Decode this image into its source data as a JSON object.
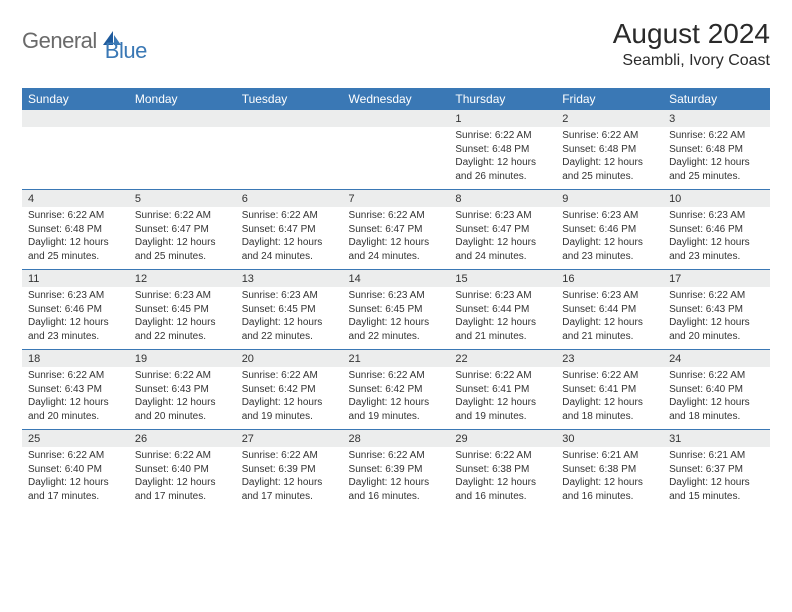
{
  "brand": {
    "part1": "General",
    "part2": "Blue"
  },
  "title": "August 2024",
  "location": "Seambli, Ivory Coast",
  "colors": {
    "header_bg": "#3a78b5",
    "header_text": "#ffffff",
    "daynum_bg": "#eceded",
    "border": "#3a78b5",
    "logo_gray": "#6a6a6a",
    "logo_blue": "#3a78b5"
  },
  "day_names": [
    "Sunday",
    "Monday",
    "Tuesday",
    "Wednesday",
    "Thursday",
    "Friday",
    "Saturday"
  ],
  "weeks": [
    [
      {},
      {},
      {},
      {},
      {
        "n": "1",
        "sr": "Sunrise: 6:22 AM",
        "ss": "Sunset: 6:48 PM",
        "d1": "Daylight: 12 hours",
        "d2": "and 26 minutes."
      },
      {
        "n": "2",
        "sr": "Sunrise: 6:22 AM",
        "ss": "Sunset: 6:48 PM",
        "d1": "Daylight: 12 hours",
        "d2": "and 25 minutes."
      },
      {
        "n": "3",
        "sr": "Sunrise: 6:22 AM",
        "ss": "Sunset: 6:48 PM",
        "d1": "Daylight: 12 hours",
        "d2": "and 25 minutes."
      }
    ],
    [
      {
        "n": "4",
        "sr": "Sunrise: 6:22 AM",
        "ss": "Sunset: 6:48 PM",
        "d1": "Daylight: 12 hours",
        "d2": "and 25 minutes."
      },
      {
        "n": "5",
        "sr": "Sunrise: 6:22 AM",
        "ss": "Sunset: 6:47 PM",
        "d1": "Daylight: 12 hours",
        "d2": "and 25 minutes."
      },
      {
        "n": "6",
        "sr": "Sunrise: 6:22 AM",
        "ss": "Sunset: 6:47 PM",
        "d1": "Daylight: 12 hours",
        "d2": "and 24 minutes."
      },
      {
        "n": "7",
        "sr": "Sunrise: 6:22 AM",
        "ss": "Sunset: 6:47 PM",
        "d1": "Daylight: 12 hours",
        "d2": "and 24 minutes."
      },
      {
        "n": "8",
        "sr": "Sunrise: 6:23 AM",
        "ss": "Sunset: 6:47 PM",
        "d1": "Daylight: 12 hours",
        "d2": "and 24 minutes."
      },
      {
        "n": "9",
        "sr": "Sunrise: 6:23 AM",
        "ss": "Sunset: 6:46 PM",
        "d1": "Daylight: 12 hours",
        "d2": "and 23 minutes."
      },
      {
        "n": "10",
        "sr": "Sunrise: 6:23 AM",
        "ss": "Sunset: 6:46 PM",
        "d1": "Daylight: 12 hours",
        "d2": "and 23 minutes."
      }
    ],
    [
      {
        "n": "11",
        "sr": "Sunrise: 6:23 AM",
        "ss": "Sunset: 6:46 PM",
        "d1": "Daylight: 12 hours",
        "d2": "and 23 minutes."
      },
      {
        "n": "12",
        "sr": "Sunrise: 6:23 AM",
        "ss": "Sunset: 6:45 PM",
        "d1": "Daylight: 12 hours",
        "d2": "and 22 minutes."
      },
      {
        "n": "13",
        "sr": "Sunrise: 6:23 AM",
        "ss": "Sunset: 6:45 PM",
        "d1": "Daylight: 12 hours",
        "d2": "and 22 minutes."
      },
      {
        "n": "14",
        "sr": "Sunrise: 6:23 AM",
        "ss": "Sunset: 6:45 PM",
        "d1": "Daylight: 12 hours",
        "d2": "and 22 minutes."
      },
      {
        "n": "15",
        "sr": "Sunrise: 6:23 AM",
        "ss": "Sunset: 6:44 PM",
        "d1": "Daylight: 12 hours",
        "d2": "and 21 minutes."
      },
      {
        "n": "16",
        "sr": "Sunrise: 6:23 AM",
        "ss": "Sunset: 6:44 PM",
        "d1": "Daylight: 12 hours",
        "d2": "and 21 minutes."
      },
      {
        "n": "17",
        "sr": "Sunrise: 6:22 AM",
        "ss": "Sunset: 6:43 PM",
        "d1": "Daylight: 12 hours",
        "d2": "and 20 minutes."
      }
    ],
    [
      {
        "n": "18",
        "sr": "Sunrise: 6:22 AM",
        "ss": "Sunset: 6:43 PM",
        "d1": "Daylight: 12 hours",
        "d2": "and 20 minutes."
      },
      {
        "n": "19",
        "sr": "Sunrise: 6:22 AM",
        "ss": "Sunset: 6:43 PM",
        "d1": "Daylight: 12 hours",
        "d2": "and 20 minutes."
      },
      {
        "n": "20",
        "sr": "Sunrise: 6:22 AM",
        "ss": "Sunset: 6:42 PM",
        "d1": "Daylight: 12 hours",
        "d2": "and 19 minutes."
      },
      {
        "n": "21",
        "sr": "Sunrise: 6:22 AM",
        "ss": "Sunset: 6:42 PM",
        "d1": "Daylight: 12 hours",
        "d2": "and 19 minutes."
      },
      {
        "n": "22",
        "sr": "Sunrise: 6:22 AM",
        "ss": "Sunset: 6:41 PM",
        "d1": "Daylight: 12 hours",
        "d2": "and 19 minutes."
      },
      {
        "n": "23",
        "sr": "Sunrise: 6:22 AM",
        "ss": "Sunset: 6:41 PM",
        "d1": "Daylight: 12 hours",
        "d2": "and 18 minutes."
      },
      {
        "n": "24",
        "sr": "Sunrise: 6:22 AM",
        "ss": "Sunset: 6:40 PM",
        "d1": "Daylight: 12 hours",
        "d2": "and 18 minutes."
      }
    ],
    [
      {
        "n": "25",
        "sr": "Sunrise: 6:22 AM",
        "ss": "Sunset: 6:40 PM",
        "d1": "Daylight: 12 hours",
        "d2": "and 17 minutes."
      },
      {
        "n": "26",
        "sr": "Sunrise: 6:22 AM",
        "ss": "Sunset: 6:40 PM",
        "d1": "Daylight: 12 hours",
        "d2": "and 17 minutes."
      },
      {
        "n": "27",
        "sr": "Sunrise: 6:22 AM",
        "ss": "Sunset: 6:39 PM",
        "d1": "Daylight: 12 hours",
        "d2": "and 17 minutes."
      },
      {
        "n": "28",
        "sr": "Sunrise: 6:22 AM",
        "ss": "Sunset: 6:39 PM",
        "d1": "Daylight: 12 hours",
        "d2": "and 16 minutes."
      },
      {
        "n": "29",
        "sr": "Sunrise: 6:22 AM",
        "ss": "Sunset: 6:38 PM",
        "d1": "Daylight: 12 hours",
        "d2": "and 16 minutes."
      },
      {
        "n": "30",
        "sr": "Sunrise: 6:21 AM",
        "ss": "Sunset: 6:38 PM",
        "d1": "Daylight: 12 hours",
        "d2": "and 16 minutes."
      },
      {
        "n": "31",
        "sr": "Sunrise: 6:21 AM",
        "ss": "Sunset: 6:37 PM",
        "d1": "Daylight: 12 hours",
        "d2": "and 15 minutes."
      }
    ]
  ]
}
